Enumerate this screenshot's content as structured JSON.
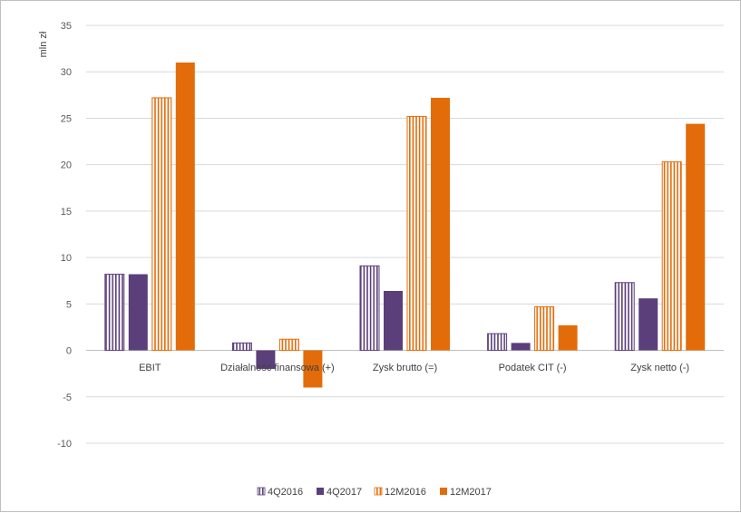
{
  "chart_data": {
    "type": "bar",
    "title": "",
    "xlabel": "",
    "ylabel": "mln zł",
    "ylim": [
      -10,
      35
    ],
    "yticks": [
      35,
      30,
      25,
      20,
      15,
      10,
      5,
      0,
      -5,
      -10
    ],
    "grid": true,
    "legend_position": "bottom",
    "categories": [
      "EBIT",
      "Działalność finansowa (+)",
      "Zysk brutto (=)",
      "Podatek CIT (-)",
      "Zysk netto (-)"
    ],
    "series": [
      {
        "name": "4Q2016",
        "values": [
          8.2,
          0.8,
          9.1,
          1.8,
          7.3
        ],
        "color": "#5b3f7a",
        "pattern": "striped"
      },
      {
        "name": "4Q2017",
        "values": [
          8.2,
          -2.0,
          6.4,
          0.8,
          5.6
        ],
        "color": "#5b3f7a",
        "pattern": "solid"
      },
      {
        "name": "12M2016",
        "values": [
          27.2,
          1.2,
          25.2,
          4.7,
          20.3
        ],
        "color": "#e36c0a",
        "pattern": "striped"
      },
      {
        "name": "12M2017",
        "values": [
          31.0,
          -4.0,
          27.2,
          2.7,
          24.4
        ],
        "color": "#e36c0a",
        "pattern": "solid"
      }
    ]
  }
}
